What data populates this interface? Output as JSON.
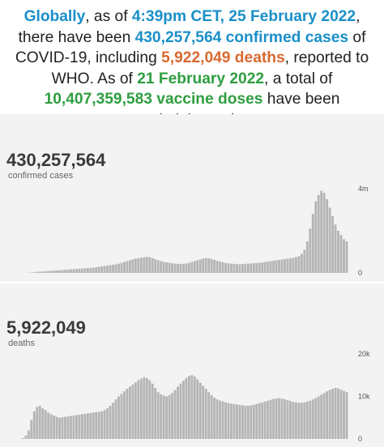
{
  "summary": {
    "t1": "Globally",
    "t2": ", as of ",
    "t3": "4:39pm CET, 25 February 2022",
    "t4": ", there have been ",
    "t5": "430,257,564 confirmed cases",
    "t6": " of COVID-19, including ",
    "t7": "5,922,049 deaths",
    "t8": ", reported to WHO. As of ",
    "t9": "21 February 2022",
    "t10": ", a total of ",
    "t11": "10,407,359,583 vaccine doses",
    "t12": " have been administered."
  },
  "colors": {
    "blue": "#1a8fc9",
    "orange": "#d8692f",
    "green": "#2f9e41",
    "bars": "#b5b5b5",
    "panel": "#f3f3f3"
  },
  "chart_data": [
    {
      "type": "bar",
      "title": "430,257,564",
      "subtitle": "confirmed cases",
      "xlabel": "",
      "ylabel": "",
      "ylim": [
        0,
        4000000
      ],
      "yticks": [
        "4m",
        "0"
      ],
      "x": [
        1,
        2,
        3,
        4,
        5,
        6,
        7,
        8,
        9,
        10,
        11,
        12,
        13,
        14,
        15,
        16,
        17,
        18,
        19,
        20,
        21,
        22,
        23,
        24,
        25,
        26,
        27,
        28,
        29,
        30,
        31,
        32,
        33,
        34,
        35,
        36,
        37,
        38,
        39,
        40,
        41,
        42,
        43,
        44,
        45,
        46,
        47,
        48,
        49,
        50,
        51,
        52,
        53,
        54,
        55,
        56,
        57,
        58,
        59,
        60,
        61,
        62,
        63,
        64,
        65,
        66,
        67,
        68,
        69,
        70,
        71,
        72,
        73,
        74,
        75,
        76,
        77,
        78,
        79,
        80,
        81,
        82,
        83,
        84,
        85,
        86,
        87,
        88,
        89,
        90,
        91,
        92,
        93,
        94,
        95,
        96,
        97,
        98,
        99,
        100,
        101,
        102,
        103,
        104,
        105,
        106,
        107,
        108,
        109,
        110,
        111,
        112,
        113,
        114,
        115,
        116,
        117,
        118
      ],
      "values": [
        0,
        0,
        2000,
        5000,
        10000,
        20000,
        40000,
        55000,
        60000,
        70000,
        80000,
        90000,
        100000,
        110000,
        120000,
        130000,
        140000,
        150000,
        160000,
        170000,
        180000,
        190000,
        200000,
        210000,
        220000,
        230000,
        240000,
        250000,
        270000,
        290000,
        310000,
        330000,
        350000,
        370000,
        390000,
        410000,
        440000,
        480000,
        520000,
        560000,
        600000,
        640000,
        680000,
        700000,
        720000,
        740000,
        760000,
        750000,
        700000,
        650000,
        600000,
        560000,
        530000,
        500000,
        480000,
        460000,
        440000,
        430000,
        420000,
        430000,
        450000,
        480000,
        520000,
        560000,
        600000,
        640000,
        680000,
        700000,
        690000,
        660000,
        620000,
        580000,
        540000,
        500000,
        470000,
        450000,
        440000,
        430000,
        420000,
        410000,
        420000,
        430000,
        440000,
        450000,
        460000,
        470000,
        480000,
        500000,
        520000,
        540000,
        560000,
        580000,
        600000,
        620000,
        640000,
        660000,
        680000,
        700000,
        720000,
        750000,
        800000,
        900000,
        1100000,
        1500000,
        2100000,
        2800000,
        3400000,
        3700000,
        3900000,
        3800000,
        3500000,
        3100000,
        2700000,
        2300000,
        2000000,
        1800000,
        1600000,
        1500000
      ]
    },
    {
      "type": "bar",
      "title": "5,922,049",
      "subtitle": "deaths",
      "xlabel": "",
      "ylabel": "",
      "ylim": [
        0,
        20000
      ],
      "yticks": [
        "20k",
        "10k",
        "0"
      ],
      "x": [
        1,
        2,
        3,
        4,
        5,
        6,
        7,
        8,
        9,
        10,
        11,
        12,
        13,
        14,
        15,
        16,
        17,
        18,
        19,
        20,
        21,
        22,
        23,
        24,
        25,
        26,
        27,
        28,
        29,
        30,
        31,
        32,
        33,
        34,
        35,
        36,
        37,
        38,
        39,
        40,
        41,
        42,
        43,
        44,
        45,
        46,
        47,
        48,
        49,
        50,
        51,
        52,
        53,
        54,
        55,
        56,
        57,
        58,
        59,
        60,
        61,
        62,
        63,
        64,
        65,
        66,
        67,
        68,
        69,
        70,
        71,
        72,
        73,
        74,
        75,
        76,
        77,
        78,
        79,
        80,
        81,
        82,
        83,
        84,
        85,
        86,
        87,
        88,
        89,
        90,
        91,
        92,
        93,
        94,
        95,
        96,
        97,
        98,
        99,
        100,
        101,
        102,
        103,
        104,
        105,
        106,
        107,
        108,
        109,
        110,
        111,
        112,
        113,
        114,
        115,
        116,
        117,
        118
      ],
      "values": [
        0,
        0,
        200,
        800,
        2000,
        4500,
        6500,
        7500,
        7800,
        7200,
        6800,
        6200,
        5800,
        5500,
        5200,
        5000,
        5100,
        5200,
        5300,
        5400,
        5500,
        5600,
        5700,
        5800,
        5900,
        6000,
        6100,
        6200,
        6300,
        6400,
        6500,
        6800,
        7200,
        7800,
        8500,
        9300,
        10000,
        10600,
        11200,
        11800,
        12300,
        12800,
        13300,
        13800,
        14200,
        14500,
        14300,
        13800,
        13000,
        12000,
        11000,
        10500,
        10200,
        10000,
        10300,
        10800,
        11500,
        12300,
        13000,
        13700,
        14300,
        14800,
        15000,
        14700,
        14000,
        13200,
        12500,
        11800,
        11000,
        10300,
        9700,
        9300,
        9000,
        8800,
        8600,
        8400,
        8300,
        8200,
        8100,
        8000,
        7900,
        7800,
        7800,
        7900,
        8000,
        8200,
        8400,
        8600,
        8800,
        9000,
        9200,
        9400,
        9500,
        9600,
        9500,
        9300,
        9100,
        8900,
        8700,
        8600,
        8500,
        8500,
        8600,
        8800,
        9000,
        9300,
        9600,
        10000,
        10400,
        10800,
        11200,
        11500,
        11800,
        12000,
        11900,
        11600,
        11300,
        11000
      ]
    }
  ]
}
